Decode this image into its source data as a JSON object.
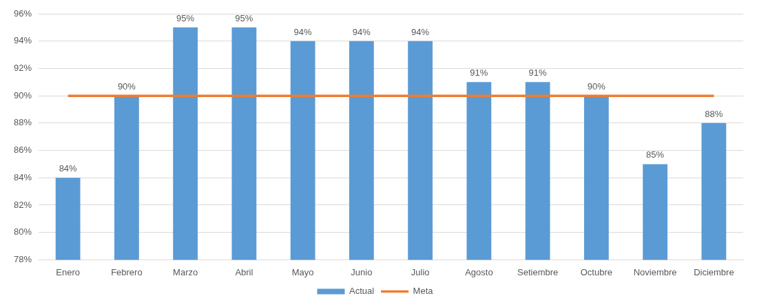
{
  "chart_data": {
    "type": "bar",
    "categories": [
      "Enero",
      "Febrero",
      "Marzo",
      "Abril",
      "Mayo",
      "Junio",
      "Julio",
      "Agosto",
      "Setiembre",
      "Octubre",
      "Noviembre",
      "Diciembre"
    ],
    "series": [
      {
        "name": "Actual",
        "color": "#5b9bd5",
        "values": [
          84,
          90,
          95,
          95,
          94,
          94,
          94,
          91,
          91,
          90,
          85,
          88
        ],
        "value_labels": [
          "84%",
          "90%",
          "95%",
          "95%",
          "94%",
          "94%",
          "94%",
          "91%",
          "91%",
          "90%",
          "85%",
          "88%"
        ]
      },
      {
        "name": "Meta",
        "type": "line",
        "color": "#ed7d31",
        "values": [
          90,
          90,
          90,
          90,
          90,
          90,
          90,
          90,
          90,
          90,
          90,
          90
        ]
      }
    ],
    "ylim": [
      78,
      96
    ],
    "yticks": [
      {
        "value": 78,
        "label": "78%"
      },
      {
        "value": 80,
        "label": "80%"
      },
      {
        "value": 82,
        "label": "82%"
      },
      {
        "value": 84,
        "label": "84%"
      },
      {
        "value": 86,
        "label": "86%"
      },
      {
        "value": 88,
        "label": "88%"
      },
      {
        "value": 90,
        "label": "90%"
      },
      {
        "value": 92,
        "label": "92%"
      },
      {
        "value": 94,
        "label": "94%"
      },
      {
        "value": 96,
        "label": "96%"
      }
    ],
    "grid": "y",
    "legend": "bottom",
    "marker": "none"
  }
}
